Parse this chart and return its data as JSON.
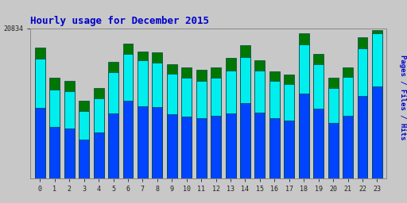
{
  "title": "Hourly usage for December 2015",
  "title_color": "#0000cc",
  "title_fontsize": 9,
  "background_color": "#c8c8c8",
  "hours": [
    0,
    1,
    2,
    3,
    4,
    5,
    6,
    7,
    8,
    9,
    10,
    11,
    12,
    13,
    14,
    15,
    16,
    17,
    18,
    19,
    20,
    21,
    22,
    23
  ],
  "pages": [
    18200,
    14000,
    13600,
    10800,
    12600,
    16200,
    18700,
    17600,
    17500,
    15900,
    15400,
    15100,
    15400,
    16800,
    18500,
    16400,
    14900,
    14400,
    20200,
    17300,
    14000,
    15400,
    19600,
    20600
  ],
  "files": [
    16600,
    12400,
    12100,
    9400,
    11100,
    14800,
    17300,
    16400,
    16100,
    14500,
    14000,
    13600,
    14000,
    15000,
    16900,
    15000,
    13600,
    13100,
    18600,
    15900,
    12600,
    14100,
    18100,
    20200
  ],
  "hits": [
    9800,
    7200,
    7000,
    5400,
    6400,
    9000,
    10800,
    10000,
    9900,
    8900,
    8600,
    8400,
    8700,
    9100,
    10500,
    9200,
    8400,
    8100,
    11800,
    9700,
    7700,
    8700,
    11500,
    12800
  ],
  "pages_color": "#007700",
  "files_color": "#00eeee",
  "hits_color": "#0044ff",
  "bar_edge_color": "#004444",
  "ylim_max": 20834,
  "bar_width": 0.7,
  "ylabel_text": "Pages / Files / Hits",
  "ylabel_color_pages": "#006600",
  "ylabel_color_files": "#00aaaa",
  "ylabel_color_hits": "#0000cc"
}
